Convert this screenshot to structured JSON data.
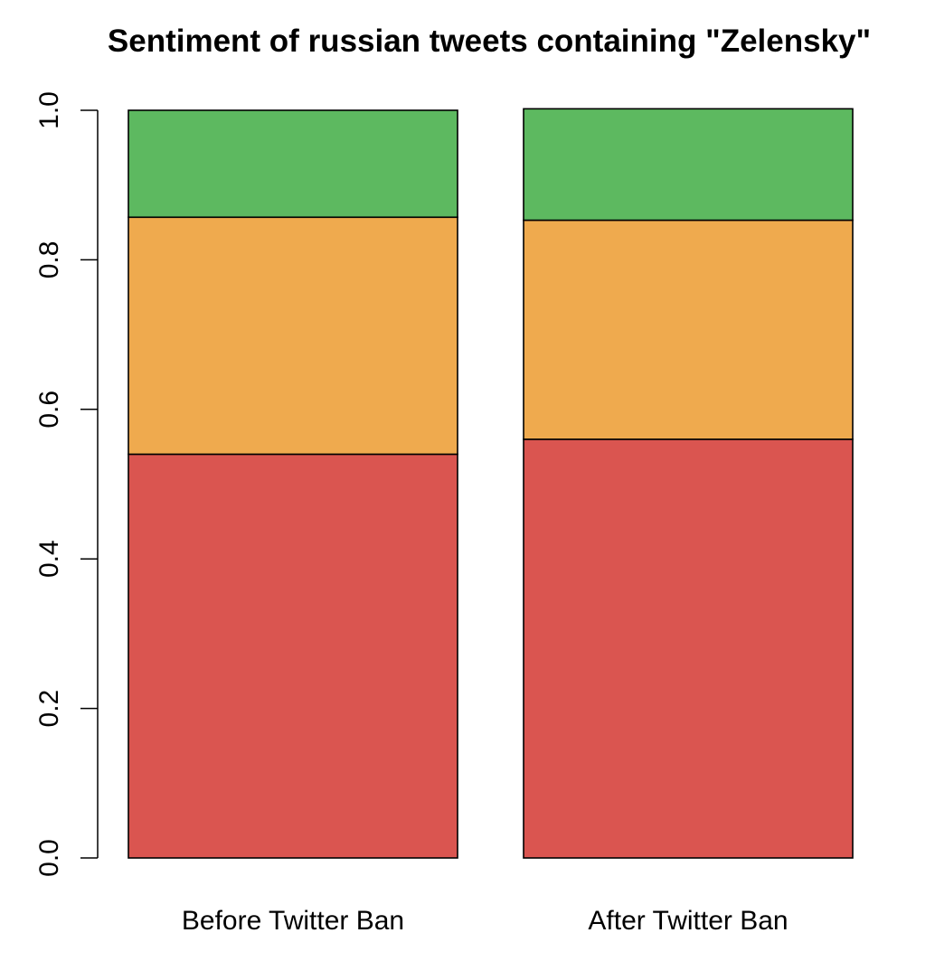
{
  "chart_data": {
    "type": "bar",
    "stacked": true,
    "title": "Sentiment of russian tweets containing \"Zelensky\"",
    "xlabel": "",
    "ylabel": "",
    "categories": [
      "Before Twitter Ban",
      "After Twitter Ban"
    ],
    "ylim": [
      0,
      1
    ],
    "yticks": [
      "0.0",
      "0.2",
      "0.4",
      "0.6",
      "0.8",
      "1.0"
    ],
    "series": [
      {
        "values": [
          0.54,
          0.56
        ],
        "color": "#DA5550"
      },
      {
        "values": [
          0.317,
          0.293
        ],
        "color": "#EFAA4E"
      },
      {
        "values": [
          0.143,
          0.149
        ],
        "color": "#5DB960"
      }
    ],
    "grid": false,
    "legend": "none"
  }
}
